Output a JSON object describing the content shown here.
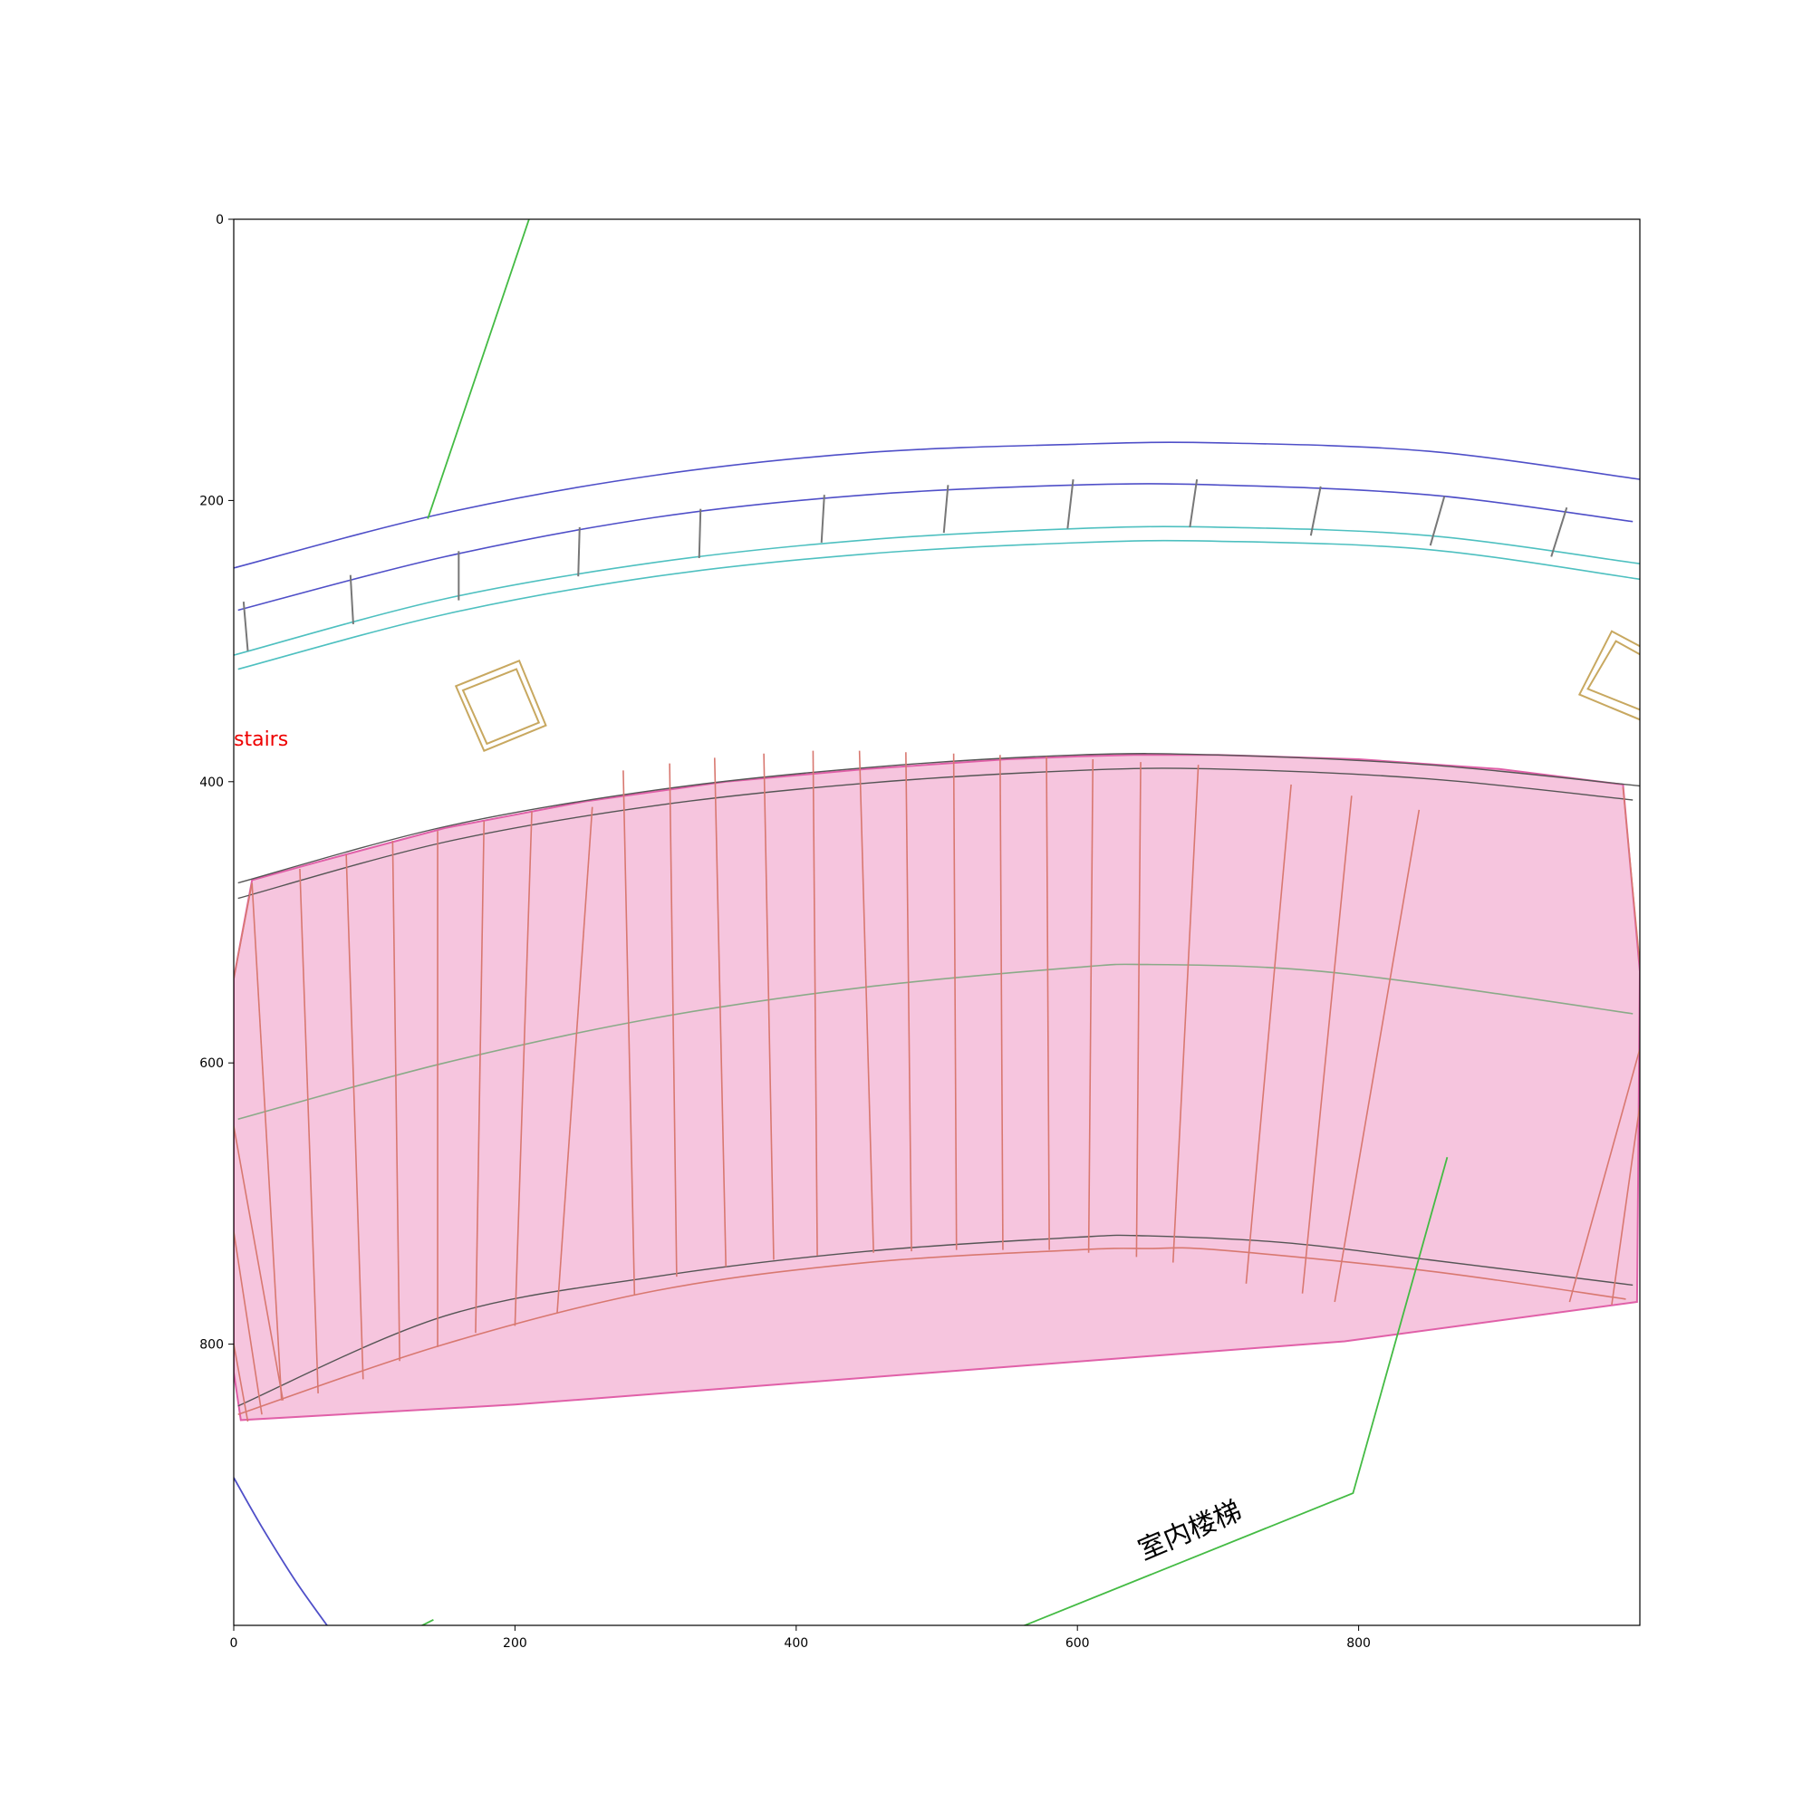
{
  "chart_data": {
    "type": "diagram",
    "x_ticks": [
      "0",
      "200",
      "400",
      "600",
      "800"
    ],
    "y_ticks": [
      "0",
      "200",
      "400",
      "600",
      "800"
    ],
    "xlim": [
      0,
      1000
    ],
    "ylim": [
      1000,
      0
    ],
    "labels": {
      "stairs": "stairs",
      "indoor_stairs": "室内楼梯"
    },
    "colors": {
      "stairs_fill": "#f6c5de",
      "stairs_edge": "#e060a8",
      "treads": "#d87870",
      "rail_dark": "#555555",
      "rail_blue": "#4f4fc8",
      "rail_cyan": "#4ec0c0",
      "pointer_green": "#44bb44",
      "pillar": "#c8a860",
      "center_line": "#8aaa88",
      "stairs_text": "#ee0000"
    }
  }
}
